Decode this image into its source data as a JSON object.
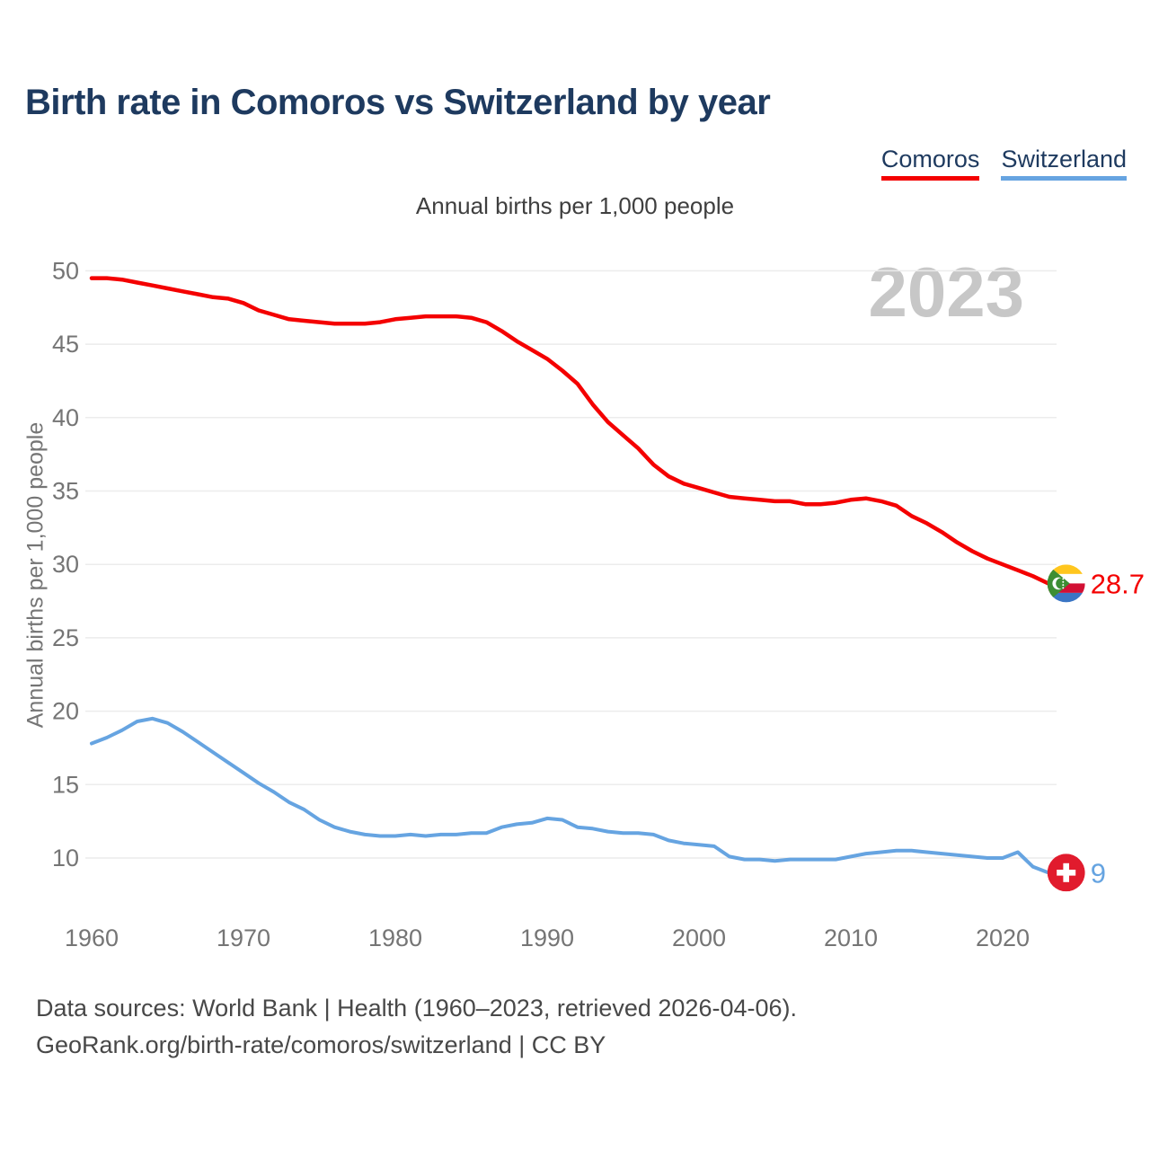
{
  "header": {
    "title": "Birth rate in Comoros vs Switzerland by year",
    "subtitle": "Annual births per 1,000 people"
  },
  "legend": [
    {
      "label": "Comoros",
      "color": "#f40000"
    },
    {
      "label": "Switzerland",
      "color": "#66a4e1"
    }
  ],
  "watermark": "2023",
  "footer": {
    "line1": "Data sources: World Bank | Health (1960–2023, retrieved 2026-04-06).",
    "line2": "GeoRank.org/birth-rate/comoros/switzerland | CC BY"
  },
  "chart_data": {
    "type": "line",
    "title": "Birth rate in Comoros vs Switzerland by year",
    "subtitle": "Annual births per 1,000 people",
    "ylabel": "Annual births per 1,000 people",
    "xlabel": "",
    "grid": true,
    "legend_position": "top-right",
    "x_ticks": [
      1960,
      1970,
      1980,
      1990,
      2000,
      2010,
      2020
    ],
    "y_ticks": [
      50,
      45,
      40,
      35,
      30,
      25,
      20,
      15,
      10
    ],
    "ylim": [
      10,
      50
    ],
    "xlim": [
      1960,
      2023
    ],
    "x": [
      1960,
      1961,
      1962,
      1963,
      1964,
      1965,
      1966,
      1967,
      1968,
      1969,
      1970,
      1971,
      1972,
      1973,
      1974,
      1975,
      1976,
      1977,
      1978,
      1979,
      1980,
      1981,
      1982,
      1983,
      1984,
      1985,
      1986,
      1987,
      1988,
      1989,
      1990,
      1991,
      1992,
      1993,
      1994,
      1995,
      1996,
      1997,
      1998,
      1999,
      2000,
      2001,
      2002,
      2003,
      2004,
      2005,
      2006,
      2007,
      2008,
      2009,
      2010,
      2011,
      2012,
      2013,
      2014,
      2015,
      2016,
      2017,
      2018,
      2019,
      2020,
      2021,
      2022,
      2023
    ],
    "series": [
      {
        "name": "Comoros",
        "color": "#f40000",
        "end_label": "28.7",
        "flag": "comoros",
        "values": [
          49.5,
          49.5,
          49.4,
          49.2,
          49.0,
          48.8,
          48.6,
          48.4,
          48.2,
          48.1,
          47.8,
          47.3,
          47.0,
          46.7,
          46.6,
          46.5,
          46.4,
          46.4,
          46.4,
          46.5,
          46.7,
          46.8,
          46.9,
          46.9,
          46.9,
          46.8,
          46.5,
          45.9,
          45.2,
          44.6,
          44.0,
          43.2,
          42.3,
          40.9,
          39.7,
          38.8,
          37.9,
          36.8,
          36.0,
          35.5,
          35.2,
          34.9,
          34.6,
          34.5,
          34.4,
          34.3,
          34.3,
          34.1,
          34.1,
          34.2,
          34.4,
          34.5,
          34.3,
          34.0,
          33.3,
          32.8,
          32.2,
          31.5,
          30.9,
          30.4,
          30.0,
          29.6,
          29.2,
          28.7
        ]
      },
      {
        "name": "Switzerland",
        "color": "#66a4e1",
        "end_label": "9",
        "flag": "switzerland",
        "values": [
          17.8,
          18.2,
          18.7,
          19.3,
          19.5,
          19.2,
          18.6,
          17.9,
          17.2,
          16.5,
          15.8,
          15.1,
          14.5,
          13.8,
          13.3,
          12.6,
          12.1,
          11.8,
          11.6,
          11.5,
          11.5,
          11.6,
          11.5,
          11.6,
          11.6,
          11.7,
          11.7,
          12.1,
          12.3,
          12.4,
          12.7,
          12.6,
          12.1,
          12.0,
          11.8,
          11.7,
          11.7,
          11.6,
          11.2,
          11.0,
          10.9,
          10.8,
          10.1,
          9.9,
          9.9,
          9.8,
          9.9,
          9.9,
          9.9,
          9.9,
          10.1,
          10.3,
          10.4,
          10.5,
          10.5,
          10.4,
          10.3,
          10.2,
          10.1,
          10.0,
          10.0,
          10.4,
          9.4,
          9.0
        ]
      }
    ],
    "flag_colors": {
      "comoros": {
        "yellow": "#ffc61e",
        "white": "#ffffff",
        "red": "#d21034",
        "blue": "#3a75c4",
        "green": "#3d8e33"
      },
      "switzerland": {
        "red": "#e11b2d",
        "cross": "#ffffff"
      }
    },
    "gridline_color": "#ececec",
    "tick_label_color": "#757575"
  }
}
